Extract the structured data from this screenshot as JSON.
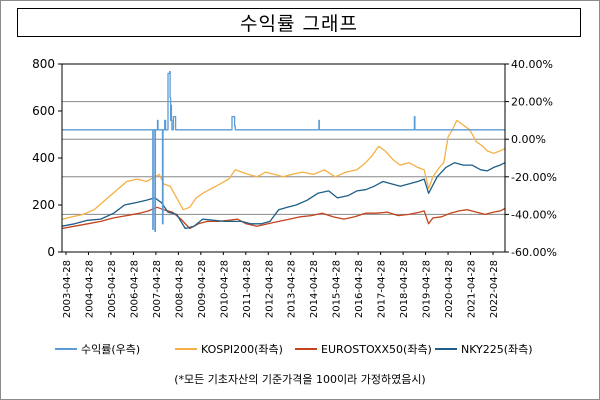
{
  "title": "수익률 그래프",
  "footnote": "(*모든 기초자산의 기준가격을 100이라 가정하였음시)",
  "colors": {
    "returns": "#5B9BD5",
    "kospi": "#F4B045",
    "eurostoxx": "#C4431B",
    "nky": "#1F5E86",
    "grid": "#888888"
  },
  "chart_data": {
    "type": "line",
    "title": "수익률 그래프",
    "x_tick_labels": [
      "2003-04-28",
      "2004-04-28",
      "2005-04-28",
      "2006-04-28",
      "2007-04-28",
      "2008-04-28",
      "2009-04-28",
      "2010-04-28",
      "2011-04-28",
      "2012-04-28",
      "2013-04-28",
      "2014-04-28",
      "2015-04-28",
      "2016-04-28",
      "2017-04-28",
      "2018-04-28",
      "2019-04-28",
      "2020-04-28",
      "2021-04-28",
      "2022-04-28"
    ],
    "x_range": [
      2003.32,
      2023.72
    ],
    "y_left": {
      "range": [
        0,
        800
      ],
      "ticks": [
        "0",
        "200",
        "400",
        "600",
        "800"
      ]
    },
    "y_right": {
      "range": [
        -60,
        40
      ],
      "ticks": [
        "-60.00%",
        "-40.00%",
        "-20.00%",
        "0.00%",
        "20.00%",
        "40.00%"
      ],
      "gridlines_at": [
        20,
        0,
        -20,
        -40
      ]
    },
    "grid": "horizontal (right axis)",
    "legend_position": "bottom",
    "series": [
      {
        "name": "수익률(우측)",
        "axis": "right",
        "color_key": "returns",
        "x": [
          2003.32,
          2007.5,
          2007.5,
          2007.52,
          2007.52,
          2007.6,
          2007.6,
          2007.62,
          2007.62,
          2007.72,
          2007.72,
          2007.74,
          2007.74,
          2007.95,
          2007.95,
          2007.97,
          2007.97,
          2008.05,
          2008.05,
          2008.09,
          2008.09,
          2008.2,
          2008.2,
          2008.28,
          2008.28,
          2008.3,
          2008.3,
          2008.32,
          2008.32,
          2008.34,
          2008.34,
          2008.36,
          2008.36,
          2008.38,
          2008.38,
          2008.45,
          2008.45,
          2008.55,
          2008.55,
          2008.7,
          2008.7,
          2011.15,
          2011.15,
          2011.27,
          2011.27,
          2011.3,
          2011.3,
          2015.15,
          2015.15,
          2015.17,
          2015.17,
          2019.55,
          2019.55,
          2019.57,
          2019.57,
          2023.72
        ],
        "y": [
          5,
          5,
          -48,
          -48,
          5,
          5,
          -49,
          -49,
          5,
          5,
          10,
          10,
          5,
          5,
          -45,
          -45,
          5,
          5,
          10,
          10,
          5,
          5,
          35,
          35,
          36,
          36,
          22,
          22,
          10,
          10,
          18,
          18,
          10,
          10,
          5,
          5,
          12,
          12,
          5,
          5,
          5,
          5,
          12,
          12,
          7,
          7,
          5,
          5,
          10,
          10,
          5,
          5,
          12,
          12,
          5,
          5
        ]
      },
      {
        "name": "KOSPI200(좌측)",
        "axis": "left",
        "color_key": "kospi",
        "x": [
          2003.32,
          2003.8,
          2004.3,
          2004.8,
          2005.3,
          2005.8,
          2006.3,
          2006.8,
          2007.2,
          2007.6,
          2007.8,
          2008.0,
          2008.3,
          2008.6,
          2008.9,
          2009.2,
          2009.5,
          2009.8,
          2010.2,
          2010.6,
          2011.0,
          2011.3,
          2011.6,
          2011.9,
          2012.3,
          2012.7,
          2013.1,
          2013.5,
          2013.9,
          2014.4,
          2014.9,
          2015.4,
          2015.9,
          2016.4,
          2016.9,
          2017.3,
          2017.6,
          2017.9,
          2018.2,
          2018.6,
          2018.9,
          2019.3,
          2019.7,
          2020.0,
          2020.2,
          2020.4,
          2020.7,
          2020.9,
          2021.1,
          2021.3,
          2021.5,
          2021.8,
          2022.1,
          2022.4,
          2022.7,
          2022.9,
          2023.2,
          2023.5,
          2023.72
        ],
        "y": [
          140,
          150,
          160,
          180,
          220,
          260,
          300,
          310,
          300,
          320,
          330,
          290,
          280,
          230,
          180,
          190,
          230,
          250,
          270,
          290,
          310,
          350,
          340,
          330,
          320,
          340,
          330,
          320,
          330,
          340,
          330,
          350,
          320,
          340,
          350,
          380,
          410,
          450,
          430,
          390,
          370,
          380,
          360,
          350,
          270,
          320,
          360,
          380,
          490,
          520,
          560,
          540,
          520,
          470,
          450,
          430,
          420,
          430,
          440
        ]
      },
      {
        "name": "EUROSTOXX50(좌측)",
        "axis": "left",
        "color_key": "eurostoxx",
        "x": [
          2003.32,
          2003.9,
          2004.5,
          2005.1,
          2005.7,
          2006.3,
          2006.9,
          2007.3,
          2007.7,
          2008.0,
          2008.4,
          2008.8,
          2009.2,
          2009.6,
          2010.0,
          2010.5,
          2011.0,
          2011.4,
          2011.8,
          2012.3,
          2012.8,
          2013.3,
          2013.8,
          2014.3,
          2014.8,
          2015.3,
          2015.8,
          2016.3,
          2016.8,
          2017.3,
          2017.8,
          2018.3,
          2018.8,
          2019.3,
          2019.8,
          2020.0,
          2020.2,
          2020.4,
          2020.8,
          2021.2,
          2021.6,
          2022.0,
          2022.4,
          2022.8,
          2023.2,
          2023.5,
          2023.72
        ],
        "y": [
          100,
          110,
          120,
          130,
          145,
          155,
          165,
          175,
          190,
          180,
          170,
          140,
          100,
          120,
          130,
          130,
          135,
          140,
          120,
          110,
          120,
          130,
          140,
          150,
          155,
          165,
          150,
          140,
          150,
          165,
          165,
          170,
          155,
          160,
          170,
          175,
          120,
          145,
          150,
          165,
          175,
          180,
          170,
          160,
          170,
          175,
          185
        ]
      },
      {
        "name": "NKY225(좌측)",
        "axis": "left",
        "color_key": "nky",
        "x": [
          2003.32,
          2003.9,
          2004.5,
          2005.1,
          2005.7,
          2006.2,
          2006.7,
          2007.2,
          2007.6,
          2007.9,
          2008.2,
          2008.6,
          2009.0,
          2009.4,
          2009.8,
          2010.3,
          2010.8,
          2011.2,
          2011.6,
          2012.0,
          2012.5,
          2012.9,
          2013.3,
          2013.7,
          2014.1,
          2014.6,
          2015.1,
          2015.6,
          2016.0,
          2016.5,
          2016.9,
          2017.3,
          2017.7,
          2018.1,
          2018.5,
          2018.9,
          2019.3,
          2019.7,
          2020.0,
          2020.2,
          2020.6,
          2021.0,
          2021.4,
          2021.8,
          2022.2,
          2022.6,
          2022.9,
          2023.2,
          2023.5,
          2023.72
        ],
        "y": [
          110,
          120,
          135,
          140,
          165,
          200,
          210,
          220,
          230,
          210,
          170,
          160,
          100,
          110,
          140,
          135,
          130,
          130,
          130,
          120,
          120,
          130,
          180,
          190,
          200,
          220,
          250,
          260,
          230,
          240,
          260,
          265,
          280,
          300,
          290,
          280,
          290,
          300,
          310,
          250,
          320,
          360,
          380,
          370,
          370,
          350,
          345,
          360,
          370,
          380
        ]
      }
    ]
  }
}
